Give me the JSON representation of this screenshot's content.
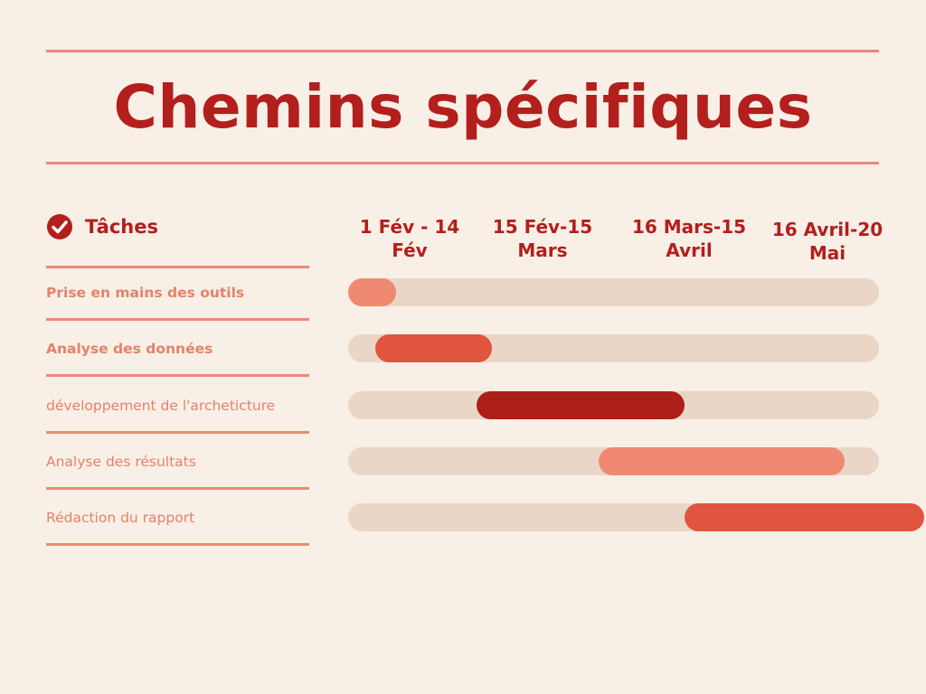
{
  "title": "Chemins spécifiques",
  "tasks_header": "Tâches",
  "chart_data": {
    "type": "gantt",
    "periods": [
      "1 Fév - 14 Fév",
      "15 Fév-15 Mars",
      "16 Mars-15 Avril",
      "16 Avril-20 Mai"
    ],
    "tasks": [
      {
        "label": "Prise en mains des outils",
        "start": "2023-02-01",
        "end": "2023-02-10",
        "color": "#ef8972",
        "bold": true
      },
      {
        "label": "Analyse des données",
        "start": "2023-02-06",
        "end": "2023-02-28",
        "color": "#e15440",
        "bold": true
      },
      {
        "label": "développement de l'archeticture",
        "start": "2023-02-25",
        "end": "2023-04-05",
        "color": "#ad1e1b",
        "bold": false
      },
      {
        "label": "Analyse des résultats",
        "start": "2023-03-20",
        "end": "2023-05-05",
        "color": "#ef8972",
        "bold": false
      },
      {
        "label": "Rédaction du rapport",
        "start": "2023-04-05",
        "end": "2023-05-20",
        "color": "#e15440",
        "bold": false
      }
    ]
  }
}
